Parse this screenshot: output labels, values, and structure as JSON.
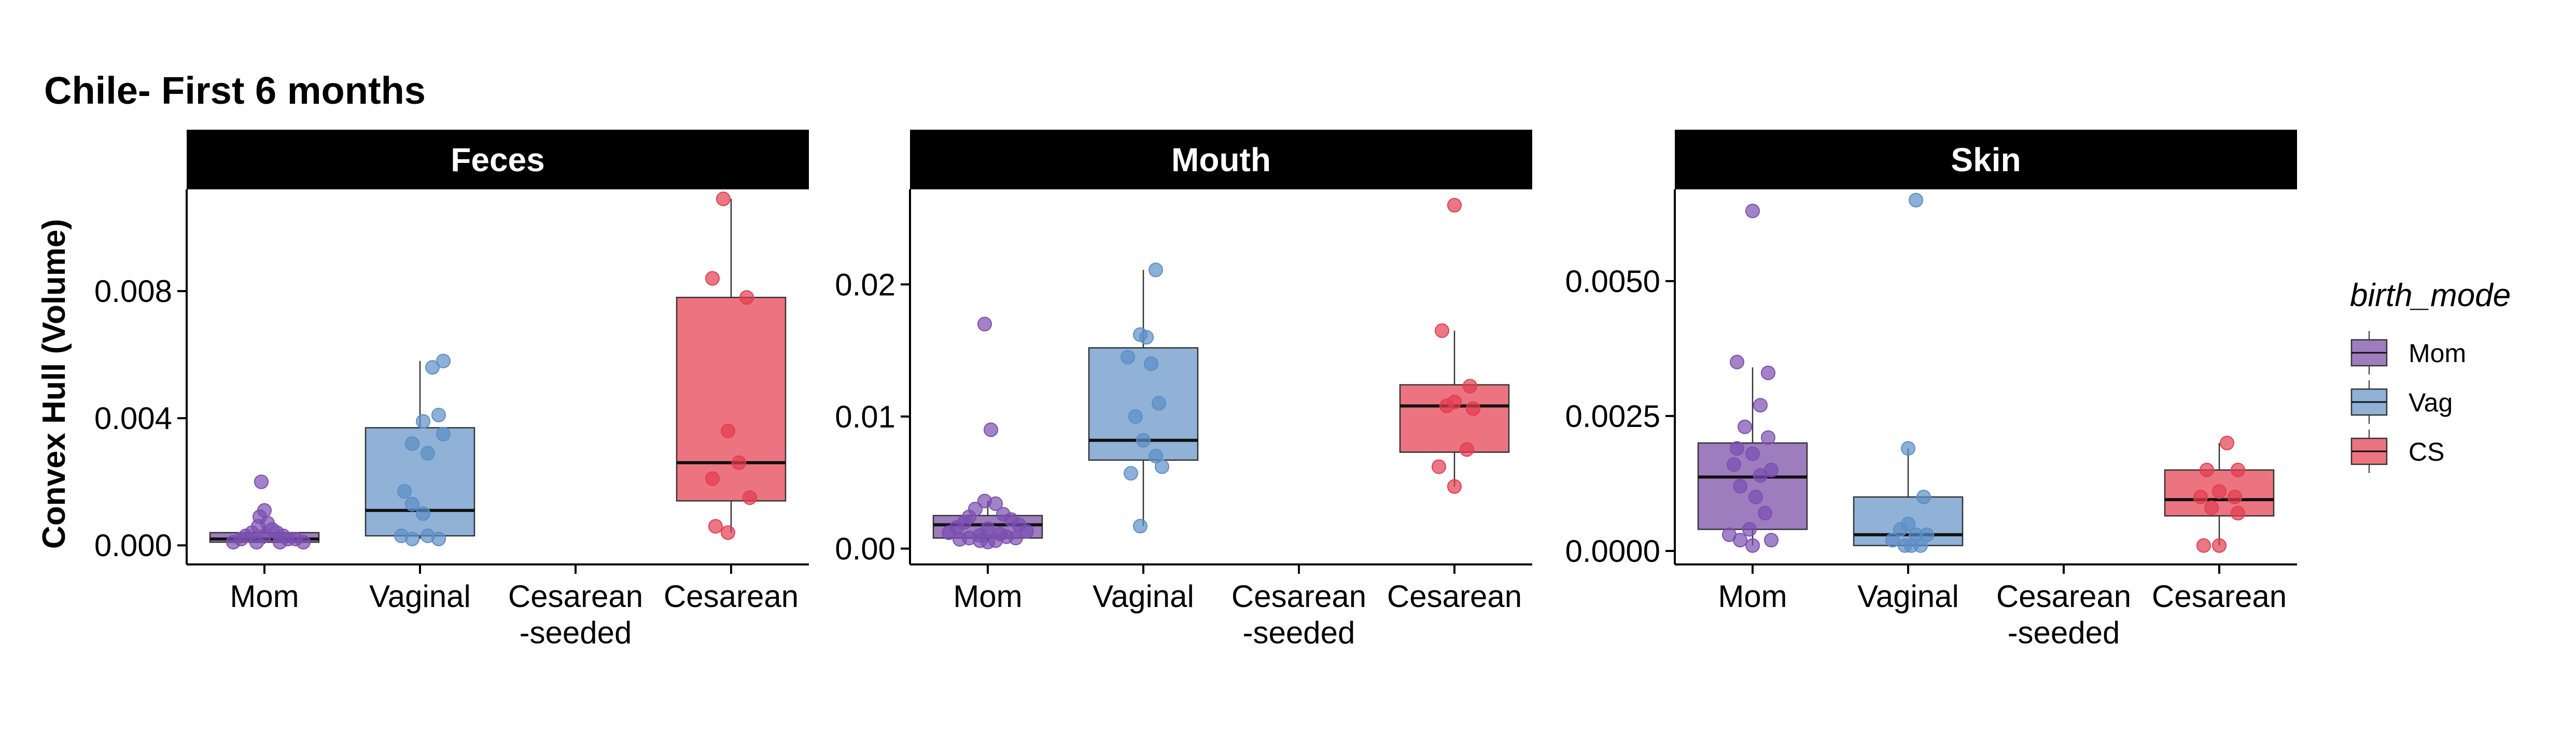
{
  "title": "Chile- First 6 months",
  "ylabel": "Convex Hull (Volume)",
  "legend": {
    "title": "birth_mode",
    "placement": "right",
    "items": [
      {
        "label": "Mom",
        "color": "#9e7dbf"
      },
      {
        "label": "Vag",
        "color": "#8fb2d6"
      },
      {
        "label": "CS",
        "color": "#ec7480"
      }
    ]
  },
  "colors": {
    "mom_point": "#7b4fb0",
    "vag_point": "#5b8ec7",
    "cs_point": "#e33d50",
    "strip_bg": "#000000",
    "box_line": "#333333"
  },
  "chart_data": [
    {
      "type": "box",
      "panel": "Feces",
      "categories": [
        "Mom",
        "Vaginal",
        "Cesarean\n-seeded",
        "Cesarean"
      ],
      "ylim": [
        -0.0006,
        0.0112
      ],
      "yticks": [
        0.0,
        0.004,
        0.008
      ],
      "ytick_labels": [
        "0.000",
        "0.004",
        "0.008"
      ],
      "grid": false,
      "boxes": [
        {
          "category": "Mom",
          "group": "Mom",
          "whisker_low": 5e-05,
          "q1": 0.0001,
          "median": 0.0002,
          "q3": 0.0004,
          "whisker_high": 0.0006,
          "points": [
            [
              -0.02,
              0.002
            ],
            [
              0.0,
              0.0011
            ],
            [
              -0.03,
              0.0009
            ],
            [
              0.02,
              0.0007
            ],
            [
              -0.04,
              0.0006
            ],
            [
              0.05,
              0.0005
            ],
            [
              0.08,
              0.0004
            ],
            [
              -0.08,
              0.0004
            ],
            [
              0.12,
              0.0003
            ],
            [
              -0.12,
              0.0003
            ],
            [
              0.15,
              0.0002
            ],
            [
              -0.15,
              0.0002
            ],
            [
              0.2,
              0.0002
            ],
            [
              -0.2,
              0.0001
            ],
            [
              0.1,
              0.0001
            ],
            [
              -0.05,
              0.0001
            ],
            [
              0.25,
              0.0001
            ],
            [
              0.0,
              0.0003
            ]
          ]
        },
        {
          "category": "Vaginal",
          "group": "Vag",
          "whisker_low": 0.0002,
          "q1": 0.0003,
          "median": 0.0011,
          "q3": 0.0037,
          "whisker_high": 0.0058,
          "points": [
            [
              0.15,
              0.0058
            ],
            [
              0.08,
              0.0056
            ],
            [
              0.12,
              0.0041
            ],
            [
              0.02,
              0.0039
            ],
            [
              0.15,
              0.0035
            ],
            [
              -0.05,
              0.0032
            ],
            [
              0.05,
              0.0029
            ],
            [
              -0.1,
              0.0017
            ],
            [
              -0.05,
              0.0013
            ],
            [
              0.02,
              0.001
            ],
            [
              -0.12,
              0.0003
            ],
            [
              0.12,
              0.0002
            ],
            [
              0.05,
              0.0003
            ],
            [
              -0.05,
              0.0002
            ]
          ]
        },
        {
          "category": "Cesarean",
          "group": "CS",
          "whisker_low": 0.0004,
          "q1": 0.0014,
          "median": 0.0026,
          "q3": 0.0078,
          "whisker_high": 0.0109,
          "points": [
            [
              -0.05,
              0.0109
            ],
            [
              -0.12,
              0.0084
            ],
            [
              0.1,
              0.0078
            ],
            [
              -0.02,
              0.0036
            ],
            [
              0.05,
              0.0026
            ],
            [
              -0.12,
              0.0021
            ],
            [
              0.12,
              0.0015
            ],
            [
              -0.1,
              0.0006
            ],
            [
              -0.02,
              0.0004
            ]
          ]
        }
      ]
    },
    {
      "type": "box",
      "panel": "Mouth",
      "categories": [
        "Mom",
        "Vaginal",
        "Cesarean\n-seeded",
        "Cesarean"
      ],
      "ylim": [
        -0.0012,
        0.0272
      ],
      "yticks": [
        0.0,
        0.01,
        0.02
      ],
      "ytick_labels": [
        "0.00",
        "0.01",
        "0.02"
      ],
      "grid": false,
      "boxes": [
        {
          "category": "Mom",
          "group": "Mom",
          "whisker_low": 0.0005,
          "q1": 0.0008,
          "median": 0.0018,
          "q3": 0.0025,
          "whisker_high": 0.0036,
          "points": [
            [
              -0.02,
              0.017
            ],
            [
              0.02,
              0.009
            ],
            [
              -0.02,
              0.0036
            ],
            [
              0.05,
              0.0034
            ],
            [
              -0.08,
              0.003
            ],
            [
              0.1,
              0.0026
            ],
            [
              -0.12,
              0.0024
            ],
            [
              0.15,
              0.0022
            ],
            [
              -0.15,
              0.002
            ],
            [
              0.2,
              0.0018
            ],
            [
              -0.2,
              0.0016
            ],
            [
              0.0,
              0.0015
            ],
            [
              0.25,
              0.0013
            ],
            [
              -0.25,
              0.0012
            ],
            [
              0.08,
              0.0011
            ],
            [
              -0.05,
              0.001
            ],
            [
              0.12,
              0.0009
            ],
            [
              -0.12,
              0.0008
            ],
            [
              0.18,
              0.0008
            ],
            [
              -0.18,
              0.0007
            ],
            [
              0.05,
              0.0006
            ],
            [
              -0.05,
              0.0006
            ],
            [
              0.0,
              0.0005
            ]
          ]
        },
        {
          "category": "Vaginal",
          "group": "Vag",
          "whisker_low": 0.0017,
          "q1": 0.0067,
          "median": 0.0082,
          "q3": 0.0152,
          "whisker_high": 0.0211,
          "points": [
            [
              0.08,
              0.0211
            ],
            [
              -0.02,
              0.0162
            ],
            [
              0.02,
              0.016
            ],
            [
              -0.1,
              0.0145
            ],
            [
              0.05,
              0.014
            ],
            [
              0.1,
              0.011
            ],
            [
              -0.05,
              0.01
            ],
            [
              0.0,
              0.0082
            ],
            [
              0.08,
              0.007
            ],
            [
              0.12,
              0.0062
            ],
            [
              -0.08,
              0.0057
            ],
            [
              -0.02,
              0.0017
            ]
          ]
        },
        {
          "category": "Cesarean",
          "group": "CS",
          "whisker_low": 0.0047,
          "q1": 0.0073,
          "median": 0.0108,
          "q3": 0.0124,
          "whisker_high": 0.0165,
          "points": [
            [
              0.0,
              0.026
            ],
            [
              -0.08,
              0.0165
            ],
            [
              0.1,
              0.0123
            ],
            [
              0.0,
              0.0111
            ],
            [
              -0.05,
              0.0108
            ],
            [
              0.12,
              0.0106
            ],
            [
              0.08,
              0.0075
            ],
            [
              -0.1,
              0.0062
            ],
            [
              0.0,
              0.0047
            ]
          ]
        }
      ]
    },
    {
      "type": "box",
      "panel": "Skin",
      "categories": [
        "Mom",
        "Vaginal",
        "Cesarean\n-seeded",
        "Cesarean"
      ],
      "ylim": [
        -0.00025,
        0.0067
      ],
      "yticks": [
        0.0,
        0.0025,
        0.005
      ],
      "ytick_labels": [
        "0.0000",
        "0.0025",
        "0.0050"
      ],
      "grid": false,
      "boxes": [
        {
          "category": "Mom",
          "group": "Mom",
          "whisker_low": 0.0001,
          "q1": 0.0004,
          "median": 0.00137,
          "q3": 0.002,
          "whisker_high": 0.0034,
          "points": [
            [
              0.0,
              0.0063
            ],
            [
              -0.1,
              0.0035
            ],
            [
              0.1,
              0.0033
            ],
            [
              0.05,
              0.0027
            ],
            [
              -0.05,
              0.0023
            ],
            [
              0.1,
              0.0021
            ],
            [
              -0.1,
              0.0019
            ],
            [
              0.0,
              0.0018
            ],
            [
              -0.12,
              0.0016
            ],
            [
              0.12,
              0.0015
            ],
            [
              0.05,
              0.0014
            ],
            [
              -0.08,
              0.0012
            ],
            [
              0.02,
              0.001
            ],
            [
              0.08,
              0.0007
            ],
            [
              -0.02,
              0.0004
            ],
            [
              -0.15,
              0.0003
            ],
            [
              0.12,
              0.0002
            ],
            [
              -0.08,
              0.0002
            ],
            [
              0.0,
              0.0001
            ]
          ]
        },
        {
          "category": "Vaginal",
          "group": "Vag",
          "whisker_low": 0.0001,
          "q1": 0.0001,
          "median": 0.0003,
          "q3": 0.001,
          "whisker_high": 0.0019,
          "points": [
            [
              0.05,
              0.0065
            ],
            [
              0.0,
              0.0019
            ],
            [
              0.1,
              0.001
            ],
            [
              0.0,
              0.0005
            ],
            [
              -0.05,
              0.0004
            ],
            [
              0.05,
              0.0003
            ],
            [
              0.12,
              0.0003
            ],
            [
              -0.1,
              0.0002
            ],
            [
              0.02,
              0.0001
            ],
            [
              0.08,
              0.0001
            ],
            [
              -0.02,
              0.0001
            ]
          ]
        },
        {
          "category": "Cesarean",
          "group": "CS",
          "whisker_low": 0.0001,
          "q1": 0.00065,
          "median": 0.00095,
          "q3": 0.0015,
          "whisker_high": 0.002,
          "points": [
            [
              0.05,
              0.002
            ],
            [
              -0.08,
              0.0015
            ],
            [
              0.12,
              0.0015
            ],
            [
              0.0,
              0.0011
            ],
            [
              -0.12,
              0.001
            ],
            [
              0.1,
              0.001
            ],
            [
              -0.05,
              0.0008
            ],
            [
              0.12,
              0.0007
            ],
            [
              -0.1,
              0.0001
            ],
            [
              0.0,
              0.0001
            ]
          ]
        }
      ]
    }
  ]
}
